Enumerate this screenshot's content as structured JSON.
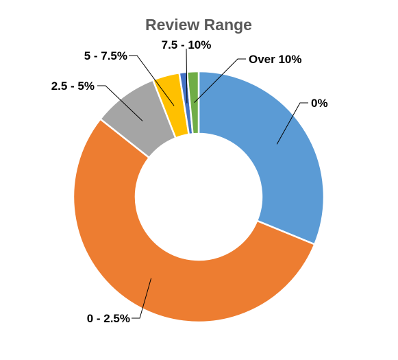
{
  "chart_data": {
    "type": "pie",
    "variant": "doughnut",
    "title": "Review Range",
    "categories": [
      "0%",
      "0 - 2.5%",
      "2.5 - 5%",
      "5 - 7.5%",
      "7.5 - 10%",
      "Over 10%"
    ],
    "values": [
      31.5,
      55.0,
      8.5,
      3.5,
      1.0,
      1.5
    ],
    "value_unit": "percent of reviews (estimated)",
    "colors": [
      "#5b9bd5",
      "#ed7d31",
      "#a5a5a5",
      "#ffc000",
      "#4472c4",
      "#70ad47"
    ],
    "start_angle": "12 o'clock",
    "direction": "clockwise",
    "legend": "none",
    "data_labels": "category names with leader lines"
  }
}
